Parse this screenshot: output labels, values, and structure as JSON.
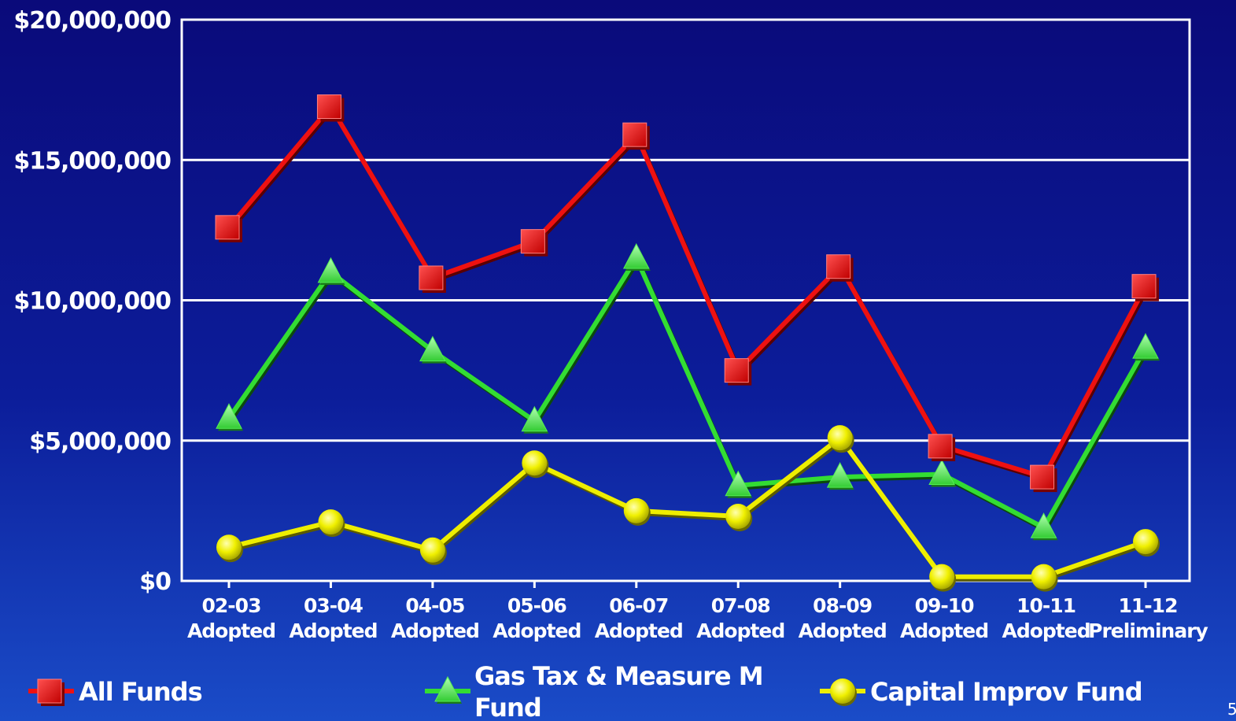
{
  "chart_data": {
    "type": "line",
    "categories": [
      "02-03 Adopted",
      "03-04 Adopted",
      "04-05 Adopted",
      "05-06 Adopted",
      "06-07 Adopted",
      "07-08 Adopted",
      "08-09 Adopted",
      "09-10 Adopted",
      "10-11 Adopted",
      "11-12 Preliminary"
    ],
    "category_lines": [
      [
        "02-03",
        "Adopted"
      ],
      [
        "03-04",
        "Adopted"
      ],
      [
        "04-05",
        "Adopted"
      ],
      [
        "05-06",
        "Adopted"
      ],
      [
        "06-07",
        "Adopted"
      ],
      [
        "07-08",
        "Adopted"
      ],
      [
        "08-09",
        "Adopted"
      ],
      [
        "09-10",
        "Adopted"
      ],
      [
        "10-11",
        "Adopted"
      ],
      [
        "11-12",
        "Preliminary"
      ]
    ],
    "ylim": [
      0,
      20000000
    ],
    "yticks": [
      {
        "value": 0,
        "label": "$0"
      },
      {
        "value": 5000000,
        "label": "$5,000,000"
      },
      {
        "value": 10000000,
        "label": "$10,000,000"
      },
      {
        "value": 15000000,
        "label": "$15,000,000"
      },
      {
        "value": 20000000,
        "label": "$20,000,000"
      }
    ],
    "grid": true,
    "legend_position": "bottom",
    "series": [
      {
        "name": "All Funds",
        "marker": "square",
        "color": "#ee1111",
        "values": [
          12600000,
          16900000,
          10800000,
          12100000,
          15900000,
          7500000,
          11200000,
          4800000,
          3700000,
          10500000
        ]
      },
      {
        "name": "Gas Tax & Measure M Fund",
        "name_lines": [
          "Gas Tax & Measure M",
          "Fund"
        ],
        "marker": "triangle",
        "color": "#33dd33",
        "values": [
          5800000,
          11000000,
          8200000,
          5700000,
          11500000,
          3400000,
          3700000,
          3800000,
          1900000,
          8300000
        ]
      },
      {
        "name": "Capital Improv Fund",
        "marker": "circle",
        "color": "#eeee00",
        "values": [
          1200000,
          2100000,
          1100000,
          4200000,
          2500000,
          2300000,
          5100000,
          150000,
          150000,
          1400000
        ]
      }
    ]
  },
  "page_number": "5"
}
